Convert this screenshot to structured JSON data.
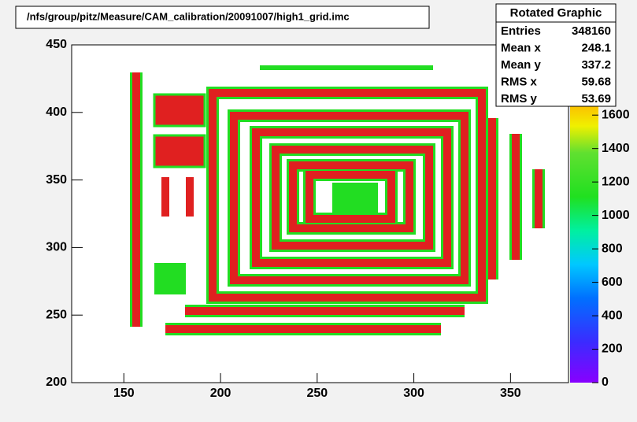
{
  "chart_data": {
    "type": "heatmap",
    "title": "/nfs/group/pitz/Measure/CAM_calibration/20091007/high1_grid.imc",
    "xlim": [
      123,
      380
    ],
    "xticks": [
      150,
      200,
      250,
      300,
      350
    ],
    "ylim": [
      200,
      450
    ],
    "yticks": [
      200,
      250,
      300,
      350,
      400,
      450
    ],
    "zlim": [
      0,
      2020
    ],
    "zticks": [
      0,
      200,
      400,
      600,
      800,
      1000,
      1200,
      1400,
      1600
    ],
    "stats": {
      "title": "Rotated Graphic",
      "rows": [
        [
          "Entries",
          "348160"
        ],
        [
          "Mean x",
          "248.1"
        ],
        [
          "Mean y",
          "337.2"
        ],
        [
          "RMS x",
          "59.68"
        ],
        [
          "RMS y",
          "53.69"
        ]
      ]
    }
  }
}
